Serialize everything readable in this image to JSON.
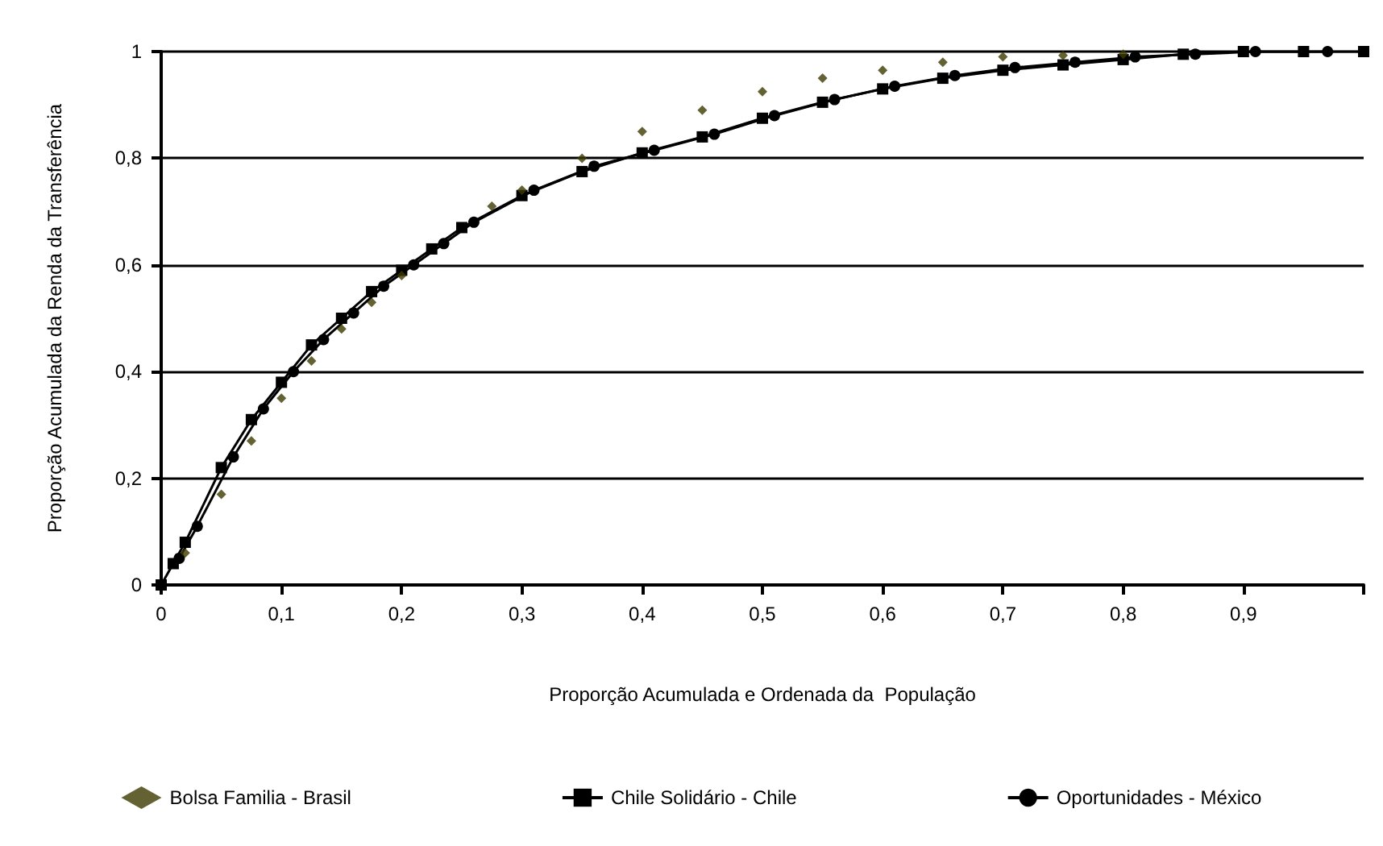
{
  "chart_data": {
    "type": "line",
    "xlabel": "Proporção Acumulada e Ordenada da  População",
    "ylabel": "Proporção Acumulada da Renda da Transferência",
    "xlim": [
      0,
      1
    ],
    "xticks": [
      0,
      {
        "value": 0.1,
        "label": "0,1"
      },
      {
        "value": 0.2,
        "label": "0,2"
      },
      {
        "value": 0.3,
        "label": "0,3"
      },
      {
        "value": 0.4,
        "label": "0,4"
      },
      {
        "value": 0.5,
        "label": "0,5"
      },
      {
        "value": 0.6,
        "label": "0,6"
      },
      {
        "value": 0.7,
        "label": "0,7"
      },
      {
        "value": 0.8,
        "label": "0,8"
      },
      {
        "value": 0.9,
        "label": "0,9"
      }
    ],
    "ylim": [
      0,
      1
    ],
    "yticks": [
      0,
      {
        "value": 0.2,
        "label": "0,2"
      },
      {
        "value": 0.4,
        "label": "0,4"
      },
      {
        "value": 0.6,
        "label": "0,6"
      },
      {
        "value": 0.8,
        "label": "0,8"
      },
      1
    ],
    "grid": "y",
    "legend": "bottom",
    "series": [
      {
        "name": "Bolsa Familia - Brasil",
        "type": "scatter",
        "marker": "diamond",
        "color": "#3d3a00",
        "x": [
          0.02,
          0.05,
          0.075,
          0.1,
          0.125,
          0.15,
          0.175,
          0.2,
          0.275,
          0.3,
          0.35,
          0.4,
          0.45,
          0.5,
          0.55,
          0.6,
          0.65,
          0.7,
          0.75,
          0.8
        ],
        "values": [
          0.06,
          0.17,
          0.27,
          0.35,
          0.42,
          0.48,
          0.53,
          0.58,
          0.71,
          0.74,
          0.8,
          0.85,
          0.89,
          0.925,
          0.95,
          0.965,
          0.98,
          0.99,
          0.993,
          0.995
        ]
      },
      {
        "name": "Chile Solidário - Chile",
        "marker": "square",
        "color": "#000000",
        "x": [
          0,
          0.01,
          0.02,
          0.05,
          0.075,
          0.1,
          0.125,
          0.15,
          0.175,
          0.2,
          0.225,
          0.25,
          0.3,
          0.35,
          0.4,
          0.45,
          0.5,
          0.55,
          0.6,
          0.65,
          0.7,
          0.75,
          0.8,
          0.85,
          0.9,
          0.95,
          1
        ],
        "values": [
          0,
          0.04,
          0.08,
          0.22,
          0.31,
          0.38,
          0.45,
          0.5,
          0.55,
          0.59,
          0.63,
          0.67,
          0.73,
          0.775,
          0.81,
          0.84,
          0.875,
          0.905,
          0.93,
          0.95,
          0.965,
          0.975,
          0.985,
          0.995,
          1,
          1,
          1
        ]
      },
      {
        "name": "Oportunidades - México",
        "marker": "circle",
        "color": "#000000",
        "x": [
          0.015,
          0.03,
          0.06,
          0.085,
          0.11,
          0.135,
          0.16,
          0.185,
          0.21,
          0.235,
          0.26,
          0.31,
          0.36,
          0.41,
          0.46,
          0.51,
          0.56,
          0.61,
          0.66,
          0.71,
          0.76,
          0.81,
          0.86,
          0.91,
          0.97
        ],
        "values": [
          0.05,
          0.11,
          0.24,
          0.33,
          0.4,
          0.46,
          0.51,
          0.56,
          0.6,
          0.64,
          0.68,
          0.74,
          0.785,
          0.815,
          0.845,
          0.88,
          0.91,
          0.935,
          0.955,
          0.97,
          0.98,
          0.99,
          0.995,
          1,
          1
        ]
      }
    ]
  }
}
